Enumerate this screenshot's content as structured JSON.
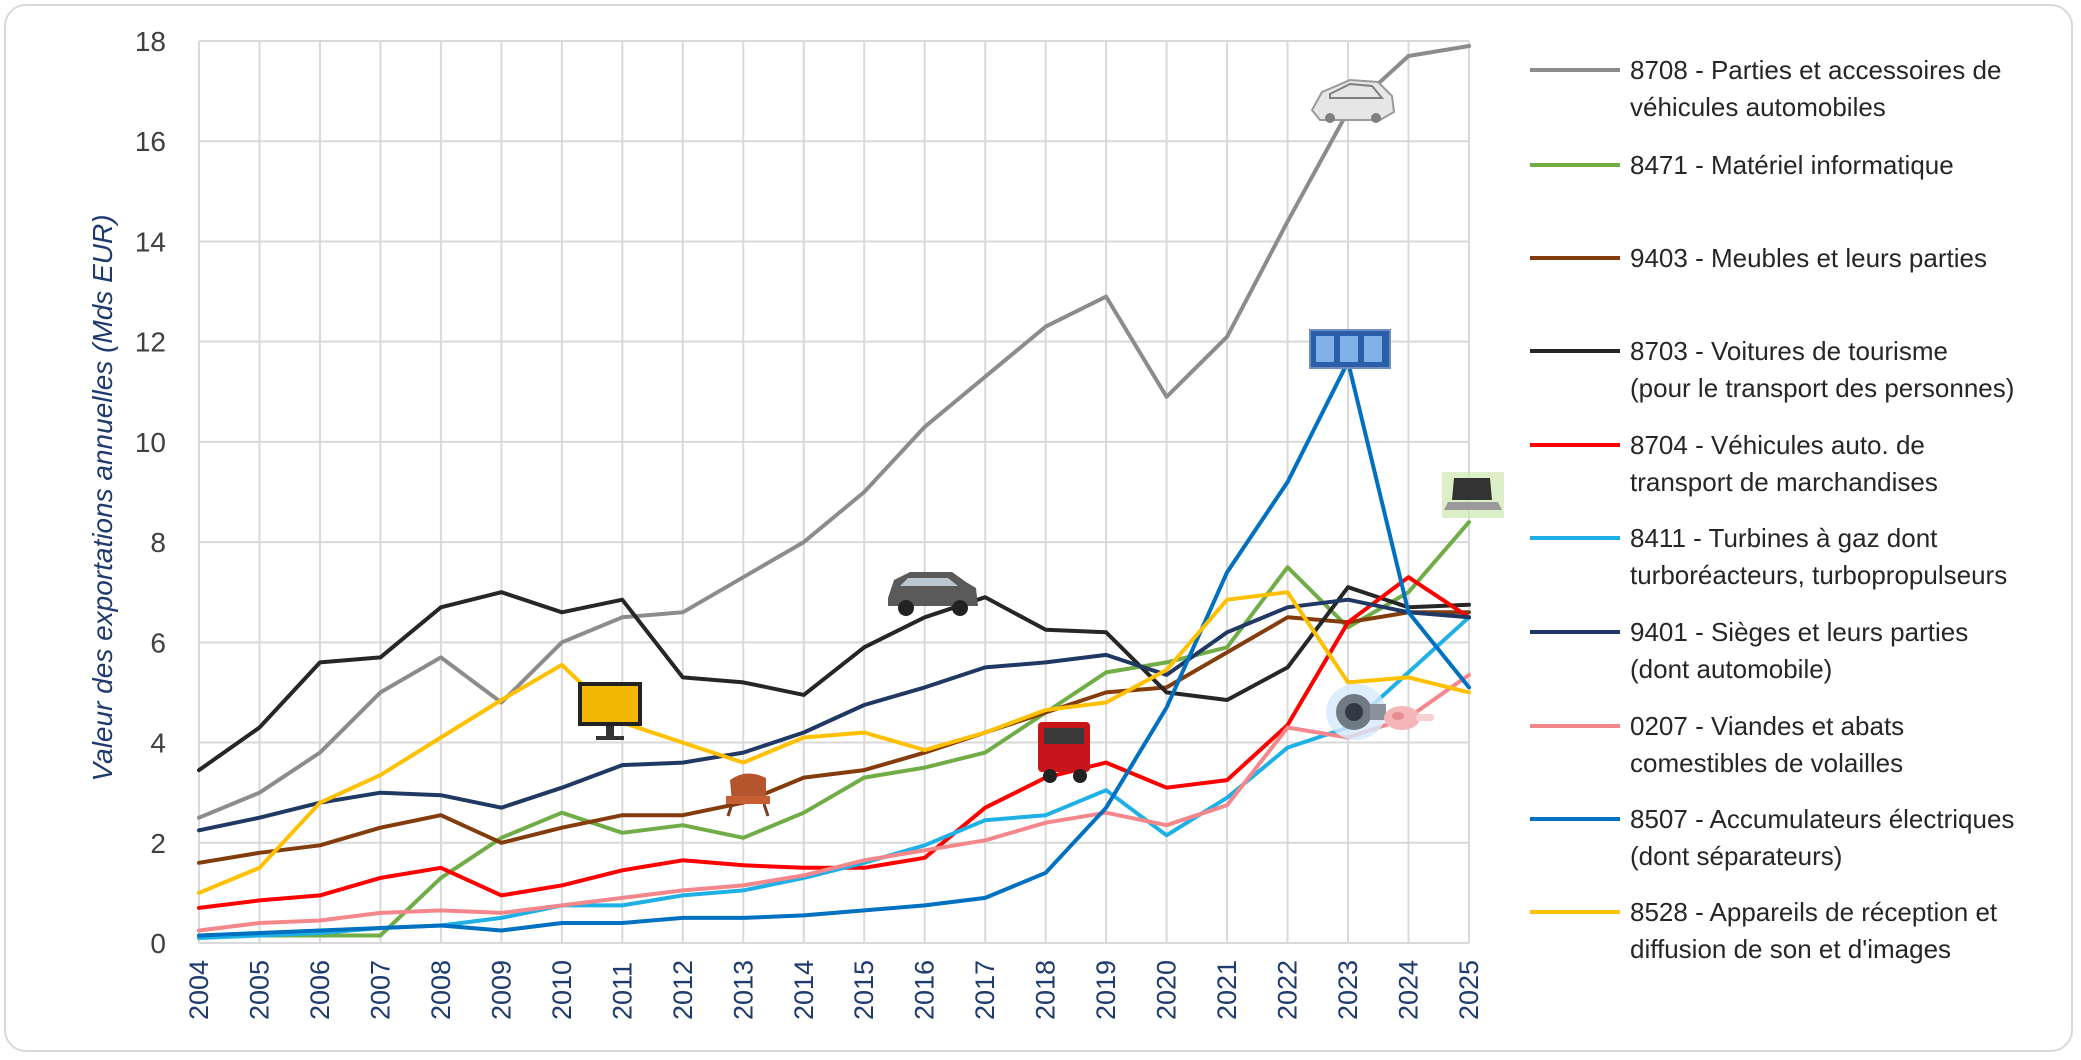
{
  "chart_data": {
    "type": "line",
    "title": "",
    "xlabel": "",
    "ylabel": "Valeur des exportations annuelles (Mds EUR)",
    "ylim": [
      0,
      18
    ],
    "yticks": [
      "0",
      "2",
      "4",
      "6",
      "8",
      "10",
      "12",
      "14",
      "16",
      "18"
    ],
    "grid": true,
    "legend_position": "right",
    "x": [
      "2004",
      "2005",
      "2006",
      "2007",
      "2008",
      "2009",
      "2010",
      "2011",
      "2012",
      "2013",
      "2014",
      "2015",
      "2016",
      "2017",
      "2018",
      "2019",
      "2020",
      "2021",
      "2022",
      "2023",
      "2024",
      "2025"
    ],
    "series": [
      {
        "name_line1": "8708 - Parties et accessoires de",
        "name_line2": "véhicules automobiles",
        "color": "#8c8c8c",
        "values": [
          2.5,
          3.0,
          3.8,
          5.0,
          5.7,
          4.8,
          6.0,
          6.5,
          6.6,
          7.3,
          8.0,
          9.0,
          10.3,
          11.3,
          12.3,
          12.9,
          10.9,
          12.1,
          14.4,
          16.6,
          17.7,
          17.9
        ]
      },
      {
        "name_line1": "8471 - Matériel informatique",
        "name_line2": "",
        "color": "#70ad47",
        "values": [
          0.15,
          0.15,
          0.15,
          0.15,
          1.3,
          2.1,
          2.6,
          2.2,
          2.35,
          2.1,
          2.6,
          3.3,
          3.5,
          3.8,
          4.6,
          5.4,
          5.6,
          5.9,
          7.5,
          6.3,
          7.0,
          8.4
        ]
      },
      {
        "name_line1": "9403 - Meubles et leurs parties",
        "name_line2": "",
        "color": "#843c0c",
        "values": [
          1.6,
          1.8,
          1.95,
          2.3,
          2.55,
          2.0,
          2.3,
          2.55,
          2.55,
          2.8,
          3.3,
          3.45,
          3.8,
          4.2,
          4.6,
          5.0,
          5.1,
          5.8,
          6.5,
          6.4,
          6.6,
          6.6
        ]
      },
      {
        "name_line1": "8703 - Voitures de tourisme",
        "name_line2": "(pour le transport des personnes)",
        "color": "#262626",
        "values": [
          3.45,
          4.3,
          5.6,
          5.7,
          6.7,
          7.0,
          6.6,
          6.85,
          5.3,
          5.2,
          4.95,
          5.9,
          6.5,
          6.9,
          6.25,
          6.2,
          5.0,
          4.85,
          5.5,
          7.1,
          6.7,
          6.75
        ]
      },
      {
        "name_line1": "8704 - Véhicules auto. de",
        "name_line2": "transport de marchandises",
        "color": "#ff0000",
        "values": [
          0.7,
          0.85,
          0.95,
          1.3,
          1.5,
          0.95,
          1.15,
          1.45,
          1.65,
          1.55,
          1.5,
          1.5,
          1.7,
          2.7,
          3.3,
          3.6,
          3.1,
          3.25,
          4.35,
          6.4,
          7.3,
          6.5
        ]
      },
      {
        "name_line1": "8411 - Turbines à gaz dont",
        "name_line2": "turboréacteurs, turbopropulseurs",
        "color": "#1fb1e6",
        "values": [
          0.1,
          0.15,
          0.2,
          0.3,
          0.35,
          0.5,
          0.75,
          0.75,
          0.95,
          1.05,
          1.3,
          1.6,
          1.95,
          2.45,
          2.55,
          3.05,
          2.15,
          2.9,
          3.9,
          4.3,
          5.4,
          6.5
        ]
      },
      {
        "name_line1": "9401 - Sièges et leurs parties",
        "name_line2": "(dont automobile)",
        "color": "#203864",
        "values": [
          2.25,
          2.5,
          2.8,
          3.0,
          2.95,
          2.7,
          3.1,
          3.55,
          3.6,
          3.8,
          4.2,
          4.75,
          5.1,
          5.5,
          5.6,
          5.75,
          5.35,
          6.2,
          6.7,
          6.85,
          6.6,
          6.5
        ]
      },
      {
        "name_line1": "0207 - Viandes et abats",
        "name_line2": "comestibles de volailles",
        "color": "#f4878b",
        "values": [
          0.25,
          0.4,
          0.45,
          0.6,
          0.65,
          0.6,
          0.75,
          0.9,
          1.05,
          1.15,
          1.35,
          1.65,
          1.85,
          2.05,
          2.4,
          2.6,
          2.35,
          2.75,
          4.3,
          4.1,
          4.5,
          5.35
        ]
      },
      {
        "name_line1": "8507 - Accumulateurs électriques",
        "name_line2": "(dont séparateurs)",
        "color": "#0070c0",
        "values": [
          0.15,
          0.2,
          0.25,
          0.3,
          0.35,
          0.25,
          0.4,
          0.4,
          0.5,
          0.5,
          0.55,
          0.65,
          0.75,
          0.9,
          1.4,
          2.7,
          4.7,
          7.4,
          9.2,
          11.6,
          6.6,
          5.1
        ]
      },
      {
        "name_line1": "8528 - Appareils de réception et",
        "name_line2": "diffusion de son et d'images",
        "color": "#ffc000",
        "values": [
          1.0,
          1.5,
          2.8,
          3.35,
          4.1,
          4.85,
          5.55,
          4.4,
          4.0,
          3.6,
          4.1,
          4.2,
          3.85,
          4.2,
          4.65,
          4.8,
          5.45,
          6.85,
          7.0,
          5.2,
          5.3,
          5.0
        ]
      }
    ]
  }
}
